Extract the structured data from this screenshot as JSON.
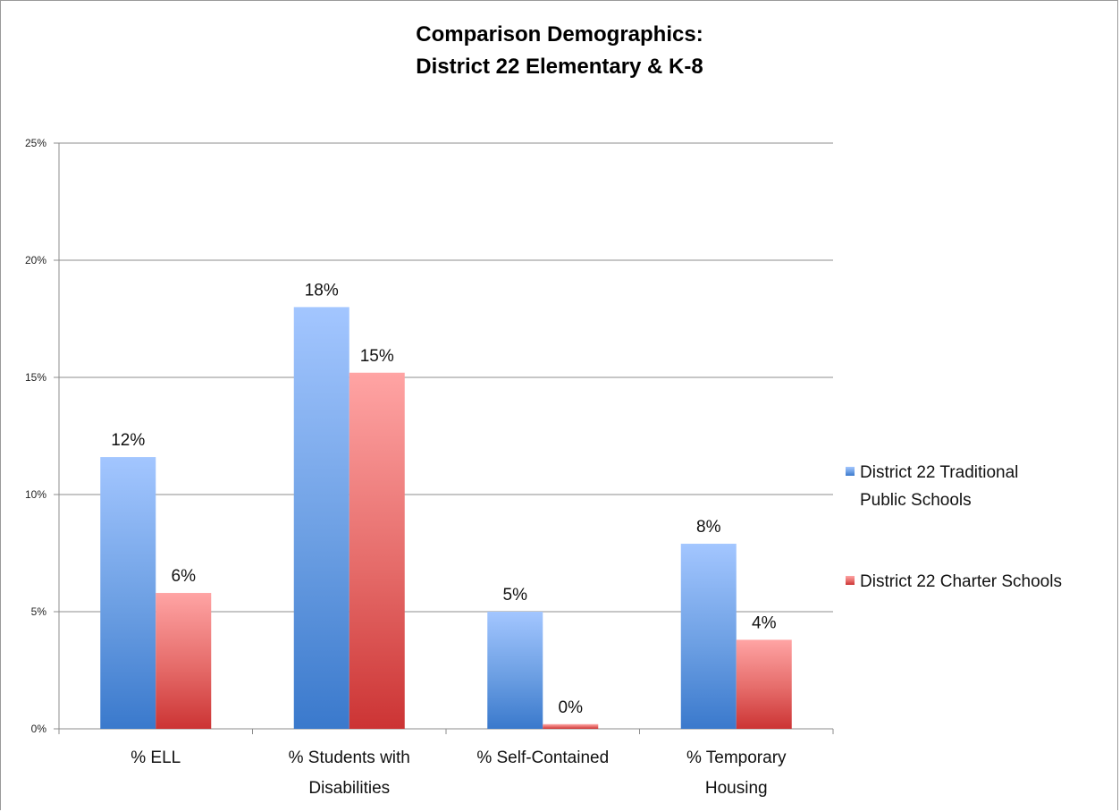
{
  "chart_data": {
    "type": "bar",
    "title": [
      "Comparison Demographics:",
      "District 22 Elementary & K-8"
    ],
    "xlabel": "",
    "ylabel": "",
    "ylim": [
      0,
      25
    ],
    "y_ticks": [
      "0%",
      "5%",
      "10%",
      "15%",
      "20%",
      "25%"
    ],
    "grid": true,
    "legend_position": "right",
    "categories": [
      [
        "% ELL"
      ],
      [
        "% Students with",
        "Disabilities"
      ],
      [
        "% Self-Contained"
      ],
      [
        "% Temporary",
        "Housing"
      ]
    ],
    "series": [
      {
        "name": [
          "District 22 Traditional",
          "Public Schools"
        ],
        "color": "#4a86d4",
        "values": [
          11.6,
          18.0,
          5.0,
          7.9
        ],
        "labels": [
          "12%",
          "18%",
          "5%",
          "8%"
        ]
      },
      {
        "name": [
          "District 22 Charter Schools"
        ],
        "color": "#d9413d",
        "values": [
          5.8,
          15.2,
          0.2,
          3.8
        ],
        "labels": [
          "6%",
          "15%",
          "0%",
          "4%"
        ]
      }
    ]
  }
}
